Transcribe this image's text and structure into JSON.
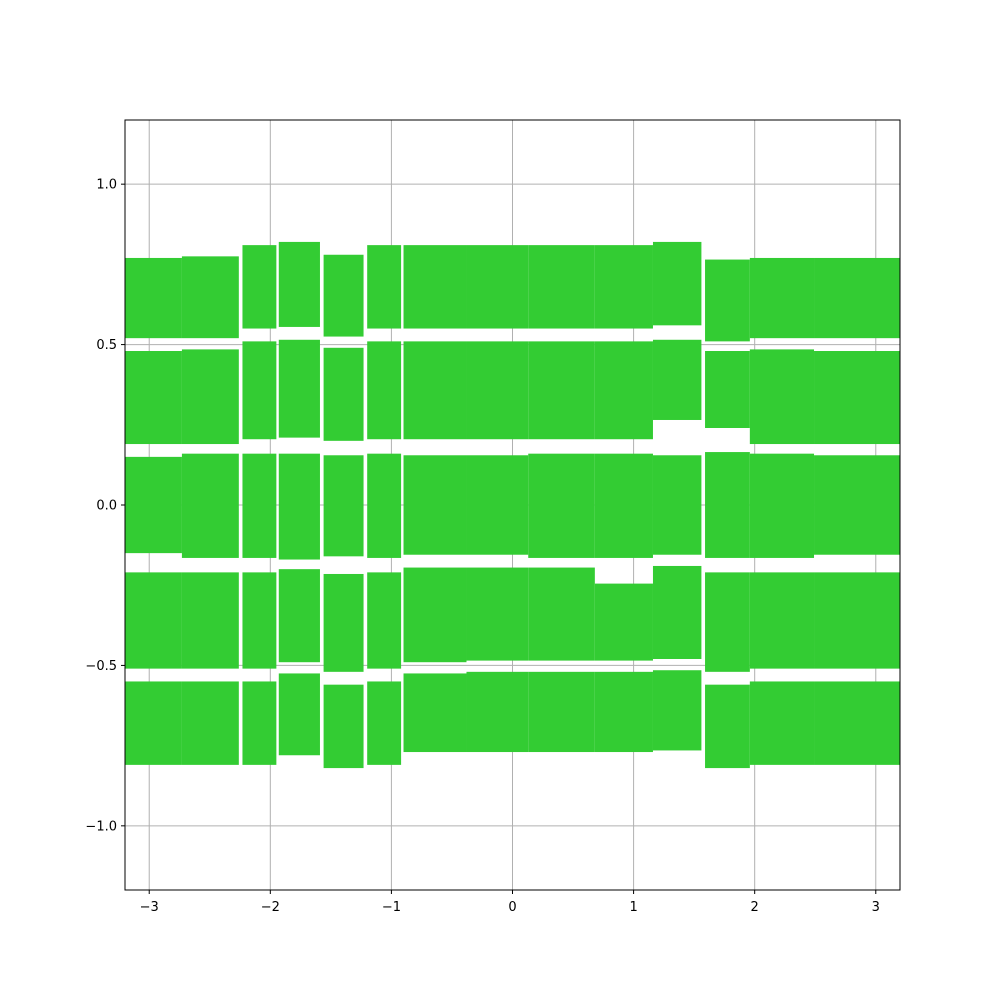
{
  "chart_data": {
    "type": "bar",
    "title": "",
    "xlabel": "",
    "ylabel": "",
    "xlim": [
      -3.2,
      3.2
    ],
    "ylim": [
      -1.2,
      1.2
    ],
    "grid": true,
    "bar_color": "#33cc33",
    "x_ticks": [
      {
        "value": -3,
        "label": "−3"
      },
      {
        "value": -2,
        "label": "−2"
      },
      {
        "value": -1,
        "label": "−1"
      },
      {
        "value": 0,
        "label": "0"
      },
      {
        "value": 1,
        "label": "1"
      },
      {
        "value": 2,
        "label": "2"
      },
      {
        "value": 3,
        "label": "3"
      }
    ],
    "y_ticks": [
      {
        "value": -1.0,
        "label": "−1.0"
      },
      {
        "value": -0.5,
        "label": "−0.5"
      },
      {
        "value": 0.0,
        "label": "0.0"
      },
      {
        "value": 0.5,
        "label": "0.5"
      },
      {
        "value": 1.0,
        "label": "1.0"
      }
    ],
    "bars": [
      {
        "x0": -3.2,
        "x1": -2.73,
        "y0": 0.52,
        "y1": 0.77
      },
      {
        "x0": -3.2,
        "x1": -2.73,
        "y0": 0.19,
        "y1": 0.48
      },
      {
        "x0": -3.2,
        "x1": -2.73,
        "y0": -0.15,
        "y1": 0.15
      },
      {
        "x0": -3.2,
        "x1": -2.73,
        "y0": -0.51,
        "y1": -0.21
      },
      {
        "x0": -3.2,
        "x1": -2.73,
        "y0": -0.81,
        "y1": -0.55
      },
      {
        "x0": -2.73,
        "x1": -2.26,
        "y0": 0.52,
        "y1": 0.775
      },
      {
        "x0": -2.73,
        "x1": -2.26,
        "y0": 0.19,
        "y1": 0.485
      },
      {
        "x0": -2.73,
        "x1": -2.26,
        "y0": -0.165,
        "y1": 0.16
      },
      {
        "x0": -2.73,
        "x1": -2.26,
        "y0": -0.51,
        "y1": -0.21
      },
      {
        "x0": -2.73,
        "x1": -2.26,
        "y0": -0.81,
        "y1": -0.55
      },
      {
        "x0": -2.23,
        "x1": -1.95,
        "y0": 0.55,
        "y1": 0.81
      },
      {
        "x0": -2.23,
        "x1": -1.95,
        "y0": 0.205,
        "y1": 0.51
      },
      {
        "x0": -2.23,
        "x1": -1.95,
        "y0": -0.165,
        "y1": 0.16
      },
      {
        "x0": -2.23,
        "x1": -1.95,
        "y0": -0.51,
        "y1": -0.21
      },
      {
        "x0": -2.23,
        "x1": -1.95,
        "y0": -0.81,
        "y1": -0.55
      },
      {
        "x0": -1.93,
        "x1": -1.59,
        "y0": 0.555,
        "y1": 0.82
      },
      {
        "x0": -1.93,
        "x1": -1.59,
        "y0": 0.21,
        "y1": 0.515
      },
      {
        "x0": -1.93,
        "x1": -1.59,
        "y0": -0.17,
        "y1": 0.16
      },
      {
        "x0": -1.93,
        "x1": -1.59,
        "y0": -0.49,
        "y1": -0.2
      },
      {
        "x0": -1.93,
        "x1": -1.59,
        "y0": -0.78,
        "y1": -0.525
      },
      {
        "x0": -1.56,
        "x1": -1.23,
        "y0": 0.525,
        "y1": 0.78
      },
      {
        "x0": -1.56,
        "x1": -1.23,
        "y0": 0.2,
        "y1": 0.49
      },
      {
        "x0": -1.56,
        "x1": -1.23,
        "y0": -0.16,
        "y1": 0.155
      },
      {
        "x0": -1.56,
        "x1": -1.23,
        "y0": -0.52,
        "y1": -0.215
      },
      {
        "x0": -1.56,
        "x1": -1.23,
        "y0": -0.82,
        "y1": -0.56
      },
      {
        "x0": -1.2,
        "x1": -0.92,
        "y0": 0.55,
        "y1": 0.81
      },
      {
        "x0": -1.2,
        "x1": -0.92,
        "y0": 0.205,
        "y1": 0.51
      },
      {
        "x0": -1.2,
        "x1": -0.92,
        "y0": -0.165,
        "y1": 0.16
      },
      {
        "x0": -1.2,
        "x1": -0.92,
        "y0": -0.51,
        "y1": -0.21
      },
      {
        "x0": -1.2,
        "x1": -0.92,
        "y0": -0.81,
        "y1": -0.55
      },
      {
        "x0": -0.9,
        "x1": -0.38,
        "y0": 0.55,
        "y1": 0.81
      },
      {
        "x0": -0.9,
        "x1": -0.38,
        "y0": 0.205,
        "y1": 0.51
      },
      {
        "x0": -0.9,
        "x1": -0.38,
        "y0": -0.155,
        "y1": 0.155
      },
      {
        "x0": -0.9,
        "x1": -0.38,
        "y0": -0.49,
        "y1": -0.195
      },
      {
        "x0": -0.9,
        "x1": -0.38,
        "y0": -0.77,
        "y1": -0.525
      },
      {
        "x0": -0.38,
        "x1": 0.13,
        "y0": 0.55,
        "y1": 0.81
      },
      {
        "x0": -0.38,
        "x1": 0.13,
        "y0": 0.205,
        "y1": 0.51
      },
      {
        "x0": -0.38,
        "x1": 0.13,
        "y0": -0.155,
        "y1": 0.155
      },
      {
        "x0": -0.38,
        "x1": 0.13,
        "y0": -0.485,
        "y1": -0.195
      },
      {
        "x0": -0.38,
        "x1": 0.13,
        "y0": -0.77,
        "y1": -0.52
      },
      {
        "x0": 0.13,
        "x1": 0.68,
        "y0": 0.55,
        "y1": 0.81
      },
      {
        "x0": 0.13,
        "x1": 0.68,
        "y0": 0.205,
        "y1": 0.51
      },
      {
        "x0": 0.13,
        "x1": 0.68,
        "y0": -0.165,
        "y1": 0.16
      },
      {
        "x0": 0.13,
        "x1": 0.68,
        "y0": -0.485,
        "y1": -0.195
      },
      {
        "x0": 0.13,
        "x1": 0.68,
        "y0": -0.77,
        "y1": -0.52
      },
      {
        "x0": 0.68,
        "x1": 1.16,
        "y0": 0.55,
        "y1": 0.81
      },
      {
        "x0": 0.68,
        "x1": 1.16,
        "y0": 0.205,
        "y1": 0.51
      },
      {
        "x0": 0.68,
        "x1": 1.16,
        "y0": -0.165,
        "y1": 0.16
      },
      {
        "x0": 0.68,
        "x1": 1.16,
        "y0": -0.485,
        "y1": -0.245
      },
      {
        "x0": 0.68,
        "x1": 1.16,
        "y0": -0.77,
        "y1": -0.52
      },
      {
        "x0": 1.16,
        "x1": 1.56,
        "y0": 0.56,
        "y1": 0.82
      },
      {
        "x0": 1.16,
        "x1": 1.56,
        "y0": 0.265,
        "y1": 0.515
      },
      {
        "x0": 1.16,
        "x1": 1.56,
        "y0": -0.155,
        "y1": 0.155
      },
      {
        "x0": 1.16,
        "x1": 1.56,
        "y0": -0.48,
        "y1": -0.19
      },
      {
        "x0": 1.16,
        "x1": 1.56,
        "y0": -0.765,
        "y1": -0.515
      },
      {
        "x0": 1.59,
        "x1": 1.96,
        "y0": 0.51,
        "y1": 0.765
      },
      {
        "x0": 1.59,
        "x1": 1.96,
        "y0": 0.24,
        "y1": 0.48
      },
      {
        "x0": 1.59,
        "x1": 1.96,
        "y0": -0.165,
        "y1": 0.165
      },
      {
        "x0": 1.59,
        "x1": 1.96,
        "y0": -0.52,
        "y1": -0.21
      },
      {
        "x0": 1.59,
        "x1": 1.96,
        "y0": -0.82,
        "y1": -0.56
      },
      {
        "x0": 1.96,
        "x1": 2.49,
        "y0": 0.52,
        "y1": 0.77
      },
      {
        "x0": 1.96,
        "x1": 2.49,
        "y0": 0.19,
        "y1": 0.485
      },
      {
        "x0": 1.96,
        "x1": 2.49,
        "y0": -0.165,
        "y1": 0.16
      },
      {
        "x0": 1.96,
        "x1": 2.49,
        "y0": -0.51,
        "y1": -0.21
      },
      {
        "x0": 1.96,
        "x1": 2.49,
        "y0": -0.81,
        "y1": -0.55
      },
      {
        "x0": 2.49,
        "x1": 3.2,
        "y0": 0.52,
        "y1": 0.77
      },
      {
        "x0": 2.49,
        "x1": 3.2,
        "y0": 0.19,
        "y1": 0.48
      },
      {
        "x0": 2.49,
        "x1": 3.2,
        "y0": -0.155,
        "y1": 0.155
      },
      {
        "x0": 2.49,
        "x1": 3.2,
        "y0": -0.51,
        "y1": -0.21
      },
      {
        "x0": 2.49,
        "x1": 3.2,
        "y0": -0.81,
        "y1": -0.55
      }
    ]
  }
}
